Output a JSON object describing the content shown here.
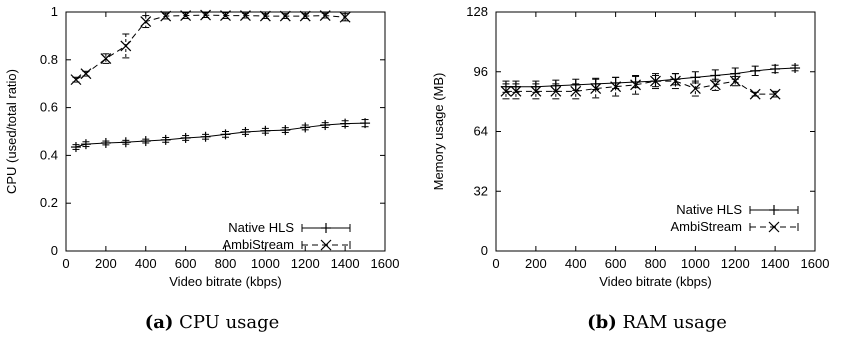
{
  "chart_data": [
    {
      "type": "line",
      "caption_label": "(a)",
      "caption_text": "CPU usage",
      "xlabel": "Video bitrate (kbps)",
      "ylabel": "CPU (used/total ratio)",
      "xlim": [
        0,
        1600
      ],
      "ylim": [
        0,
        1
      ],
      "xticks": [
        "0",
        "200",
        "400",
        "600",
        "800",
        "1000",
        "1200",
        "1400",
        "1600"
      ],
      "yticks": [
        "0",
        "0.2",
        "0.4",
        "0.6",
        "0.8",
        "1"
      ],
      "legend_position": "bottom-right",
      "grid": false,
      "series": [
        {
          "name": "Native HLS",
          "style": "solid",
          "marker": "plus",
          "x": [
            50,
            100,
            200,
            300,
            400,
            500,
            600,
            700,
            800,
            900,
            1000,
            1100,
            1200,
            1300,
            1400,
            1500
          ],
          "y": [
            0.435,
            0.447,
            0.452,
            0.455,
            0.46,
            0.465,
            0.473,
            0.478,
            0.488,
            0.498,
            0.503,
            0.506,
            0.517,
            0.527,
            0.533,
            0.535
          ],
          "err": [
            0.01,
            0.01,
            0.008,
            0.008,
            0.008,
            0.01,
            0.01,
            0.01,
            0.012,
            0.01,
            0.01,
            0.01,
            0.01,
            0.01,
            0.012,
            0.015
          ]
        },
        {
          "name": "AmbiStream",
          "style": "dashed",
          "marker": "x",
          "x": [
            50,
            100,
            200,
            300,
            400,
            500,
            600,
            700,
            800,
            900,
            1000,
            1100,
            1200,
            1300,
            1400
          ],
          "y": [
            0.717,
            0.742,
            0.805,
            0.858,
            0.96,
            0.983,
            0.985,
            0.987,
            0.985,
            0.985,
            0.983,
            0.983,
            0.983,
            0.985,
            0.978
          ],
          "err": [
            0.01,
            0.01,
            0.02,
            0.05,
            0.025,
            0.012,
            0.012,
            0.01,
            0.012,
            0.01,
            0.01,
            0.01,
            0.01,
            0.01,
            0.015
          ]
        }
      ]
    },
    {
      "type": "line",
      "caption_label": "(b)",
      "caption_text": "RAM usage",
      "xlabel": "Video bitrate (kbps)",
      "ylabel": "Memory usage (MB)",
      "xlim": [
        0,
        1600
      ],
      "ylim": [
        0,
        128
      ],
      "xticks": [
        "0",
        "200",
        "400",
        "600",
        "800",
        "1000",
        "1200",
        "1400",
        "1600"
      ],
      "yticks": [
        "0",
        "32",
        "64",
        "96",
        "128"
      ],
      "legend_position": "bottom-right",
      "grid": false,
      "series": [
        {
          "name": "Native HLS",
          "style": "solid",
          "marker": "plus",
          "x": [
            50,
            100,
            200,
            300,
            400,
            500,
            600,
            700,
            800,
            900,
            1000,
            1100,
            1200,
            1300,
            1400,
            1500
          ],
          "y": [
            88,
            88,
            88,
            88.5,
            89,
            89.5,
            90,
            90.5,
            91,
            92,
            93,
            94,
            95,
            96.5,
            97.5,
            98
          ],
          "err": [
            3,
            3,
            3,
            3,
            3,
            3,
            3,
            3,
            3,
            3,
            3,
            3,
            3,
            2.5,
            2,
            1.5
          ]
        },
        {
          "name": "AmbiStream",
          "style": "dashed",
          "marker": "x",
          "x": [
            50,
            100,
            200,
            300,
            400,
            500,
            600,
            700,
            800,
            900,
            1000,
            1100,
            1200,
            1300,
            1400
          ],
          "y": [
            85.5,
            85.5,
            85.5,
            85.5,
            85.5,
            87,
            88,
            89,
            91,
            91,
            87,
            89,
            91,
            84,
            84
          ],
          "err": [
            4,
            4,
            4,
            4,
            4,
            5,
            5,
            5,
            4,
            4,
            4,
            3,
            2.5,
            1,
            1.5
          ]
        }
      ]
    }
  ]
}
